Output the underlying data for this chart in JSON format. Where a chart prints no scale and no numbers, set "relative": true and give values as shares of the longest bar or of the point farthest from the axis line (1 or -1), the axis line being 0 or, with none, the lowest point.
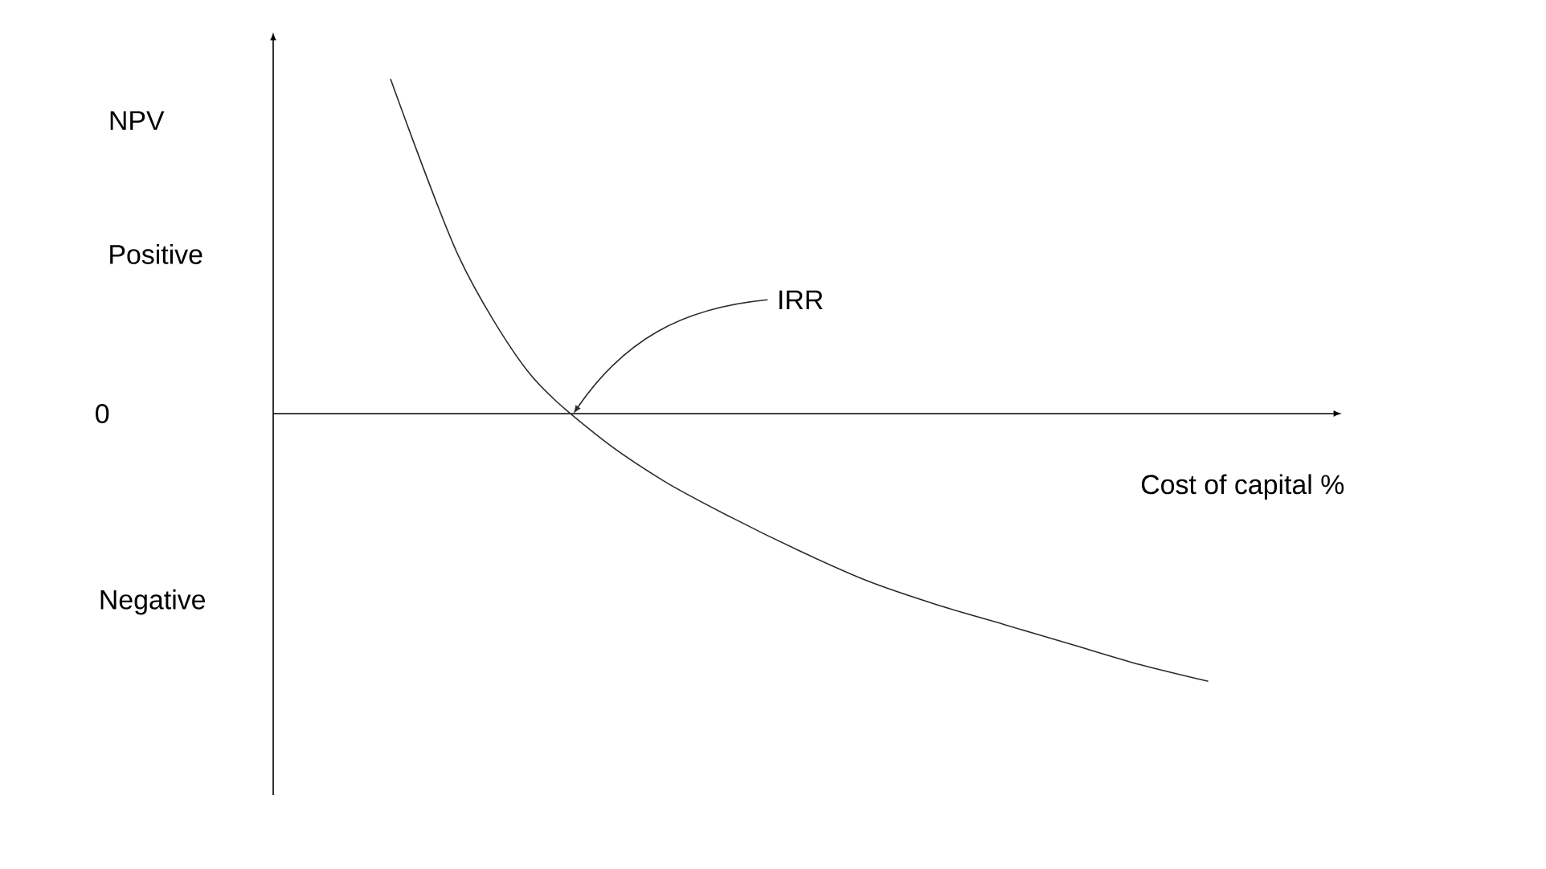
{
  "chart_data": {
    "type": "line",
    "relative": true,
    "xlabel": "Cost of capital %",
    "categories": [
      null,
      null,
      null,
      null,
      null,
      null,
      null,
      null,
      null,
      null,
      null,
      null,
      null
    ],
    "values": [
      1.0,
      0.47,
      0.13,
      -0.06,
      -0.2,
      -0.31,
      -0.41,
      -0.5,
      -0.57,
      -0.63,
      -0.69,
      -0.75,
      -0.8
    ],
    "color": "#2b2b2b",
    "line_style": "solid",
    "marker": "none",
    "annotations": [
      "NPV",
      "Positive",
      "0",
      "Negative",
      "IRR"
    ]
  }
}
